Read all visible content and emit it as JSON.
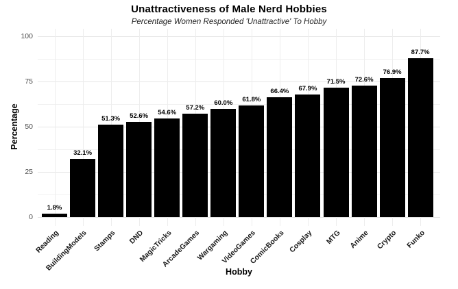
{
  "chart_data": {
    "type": "bar",
    "title": "Unattractiveness of Male Nerd Hobbies",
    "subtitle": "Percentage Women Responded 'Unattractive' To Hobby",
    "xlabel": "Hobby",
    "ylabel": "Percentage",
    "categories": [
      "Reading",
      "BuildingModels",
      "Stamps",
      "DND",
      "MagicTricks",
      "ArcadeGames",
      "Wargaming",
      "VideoGames",
      "ComicBooks",
      "Cosplay",
      "MTG",
      "Anime",
      "Crypto",
      "Funko"
    ],
    "values": [
      1.8,
      32.1,
      51.3,
      52.6,
      54.6,
      57.2,
      60.0,
      61.8,
      66.4,
      67.9,
      71.5,
      72.6,
      76.9,
      87.7
    ],
    "bar_labels": [
      "1.8%",
      "32.1%",
      "51.3%",
      "52.6%",
      "54.6%",
      "57.2%",
      "60.0%",
      "61.8%",
      "66.4%",
      "67.9%",
      "71.5%",
      "72.6%",
      "76.9%",
      "87.7%"
    ],
    "ylim": [
      0,
      100
    ],
    "yticks": [
      0,
      25,
      50,
      75,
      100
    ],
    "grid": true,
    "legend": false,
    "colors": {
      "bar": "#000000",
      "grid_major": "#e5e5e5",
      "grid_minor": "#f1f1f1",
      "axis_tick_text": "#4d4d4d",
      "category_text": "#1a1a1a"
    }
  }
}
